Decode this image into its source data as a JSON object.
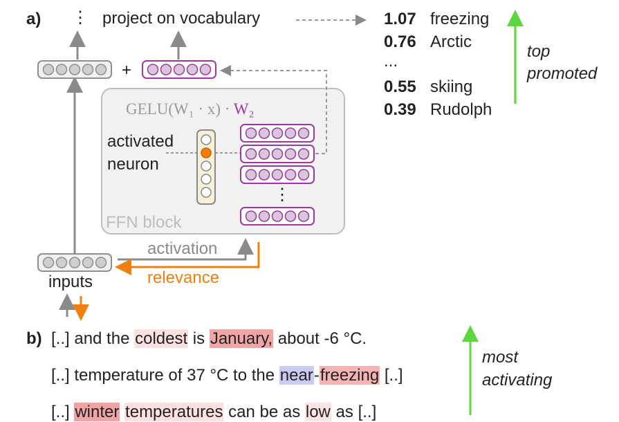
{
  "panel_a": {
    "label": "a)",
    "ellipsis": "⋮",
    "project_label": "project on vocabulary",
    "plus": "+",
    "formula": [
      {
        "text": "GELU(W₁ · x) · ",
        "color": "#9a9a9a"
      },
      {
        "text": "W₂",
        "color": "#a0379c"
      }
    ],
    "activated_neuron": [
      "activated",
      "neuron"
    ],
    "rows_ellipsis": "⋮",
    "ffn_label": "FFN block",
    "activation": "activation",
    "relevance": "relevance",
    "inputs": "inputs",
    "tokens": [
      {
        "score": 1.07,
        "word": "freezing"
      },
      {
        "score": 0.76,
        "word": "Arctic"
      },
      {
        "score": null,
        "word": "..."
      },
      {
        "score": 0.55,
        "word": "skiing"
      },
      {
        "score": 0.39,
        "word": "Rudolph"
      }
    ],
    "top_promoted": [
      "top",
      "promoted"
    ]
  },
  "panel_b": {
    "label": "b)",
    "sentences": [
      [
        {
          "text": "[..] and the "
        },
        {
          "text": "coldest",
          "highlight": "#fde1e1"
        },
        {
          "text": " is "
        },
        {
          "text": "January,",
          "highlight": "#f3a5a5"
        },
        {
          "text": " about -6 °C."
        }
      ],
      [
        {
          "text": "[..] temperature of 37 °C to the "
        },
        {
          "text": "near",
          "highlight": "#cacbf2"
        },
        {
          "text": "-"
        },
        {
          "text": "freezing",
          "highlight": "#f5b3b3"
        },
        {
          "text": " [..]"
        }
      ],
      [
        {
          "text": "[..] "
        },
        {
          "text": "winter",
          "highlight": "#f2a3a3"
        },
        {
          "text": " "
        },
        {
          "text": "temperatures",
          "highlight": "#fde0e0"
        },
        {
          "text": " can be as "
        },
        {
          "text": "low",
          "highlight": "#fde3e3"
        },
        {
          "text": " as [..]"
        }
      ]
    ],
    "most_activating": [
      "most",
      "activating"
    ]
  }
}
